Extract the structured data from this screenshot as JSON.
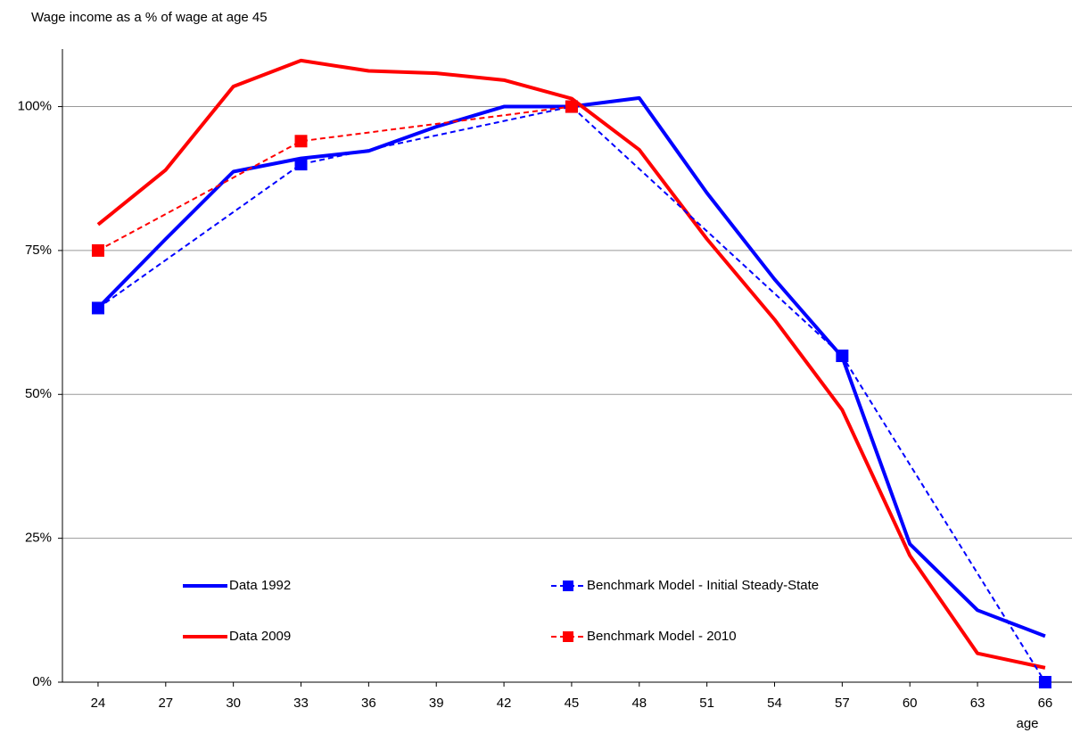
{
  "chart_data": {
    "type": "line",
    "y_axis_label": "Wage income as a % of wage at age 45",
    "x_axis_label": "age",
    "xlim": [
      22.42,
      67.19
    ],
    "xticks": [
      24,
      27,
      30,
      33,
      36,
      39,
      42,
      45,
      48,
      51,
      54,
      57,
      60,
      63,
      66
    ],
    "ylim": [
      0,
      110
    ],
    "yticks": [
      {
        "value": 0,
        "label": "0%"
      },
      {
        "value": 25,
        "label": "25%"
      },
      {
        "value": 50,
        "label": "50%"
      },
      {
        "value": 75,
        "label": "75%"
      },
      {
        "value": 100,
        "label": "100%"
      }
    ],
    "grid": true,
    "series": [
      {
        "name": "Data 1992",
        "color": "#0000ff",
        "style": "solid",
        "marker": false,
        "x": [
          24,
          27,
          30,
          33,
          36,
          39,
          42,
          45,
          48,
          51,
          54,
          57,
          60,
          63,
          66
        ],
        "values": [
          65,
          77,
          88.7,
          91,
          92.3,
          96.5,
          100,
          100,
          101.5,
          85,
          70,
          56.5,
          24,
          12.5,
          8
        ]
      },
      {
        "name": "Benchmark Model - Initial Steady-State",
        "color": "#0000ff",
        "style": "dashed",
        "marker": true,
        "x": [
          24,
          33,
          45,
          57,
          66
        ],
        "values": [
          65,
          90,
          100,
          56.7,
          0
        ]
      },
      {
        "name": "Data 2009",
        "color": "#ff0000",
        "style": "solid",
        "marker": false,
        "x": [
          24,
          27,
          30,
          33,
          36,
          39,
          42,
          45,
          48,
          51,
          54,
          57,
          60,
          63,
          66
        ],
        "values": [
          79.5,
          89,
          103.5,
          108,
          106.2,
          105.8,
          104.6,
          101.4,
          92.5,
          77,
          63,
          47.3,
          22,
          5,
          2.5
        ]
      },
      {
        "name": "Benchmark Model - 2010",
        "color": "#ff0000",
        "style": "dashed",
        "marker": true,
        "x": [
          24,
          33,
          45
        ],
        "values": [
          75,
          94,
          100
        ]
      }
    ]
  }
}
